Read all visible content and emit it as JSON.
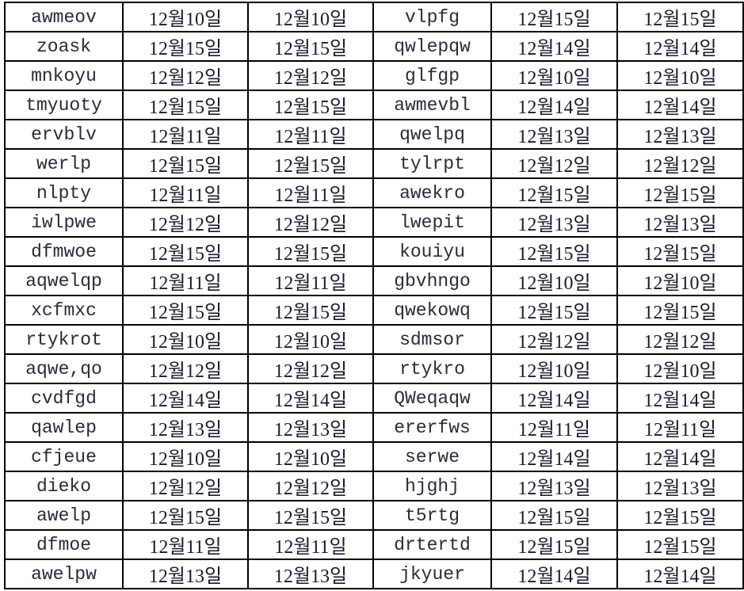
{
  "sheet": {
    "rows": [
      [
        "awmeov",
        "12월10일",
        "12월10일",
        "vlpfg",
        "12월15일",
        "12월15일"
      ],
      [
        "zoask",
        "12월15일",
        "12월15일",
        "qwlepqw",
        "12월14일",
        "12월14일"
      ],
      [
        "mnkoyu",
        "12월12일",
        "12월12일",
        "glfgp",
        "12월10일",
        "12월10일"
      ],
      [
        "tmyuoty",
        "12월15일",
        "12월15일",
        "awmevbl",
        "12월14일",
        "12월14일"
      ],
      [
        "ervblv",
        "12월11일",
        "12월11일",
        "qwelpq",
        "12월13일",
        "12월13일"
      ],
      [
        "werlp",
        "12월15일",
        "12월15일",
        "tylrpt",
        "12월12일",
        "12월12일"
      ],
      [
        "nlpty",
        "12월11일",
        "12월11일",
        "awekro",
        "12월15일",
        "12월15일"
      ],
      [
        "iwlpwe",
        "12월12일",
        "12월12일",
        "lwepit",
        "12월13일",
        "12월13일"
      ],
      [
        "dfmwoe",
        "12월15일",
        "12월15일",
        "kouiyu",
        "12월15일",
        "12월15일"
      ],
      [
        "aqwelqp",
        "12월11일",
        "12월11일",
        "gbvhngo",
        "12월10일",
        "12월10일"
      ],
      [
        "xcfmxc",
        "12월15일",
        "12월15일",
        "qwekowq",
        "12월15일",
        "12월15일"
      ],
      [
        "rtykrot",
        "12월10일",
        "12월10일",
        "sdmsor",
        "12월12일",
        "12월12일"
      ],
      [
        "aqwe,qo",
        "12월12일",
        "12월12일",
        "rtykro",
        "12월10일",
        "12월10일"
      ],
      [
        "cvdfgd",
        "12월14일",
        "12월14일",
        "QWeqaqw",
        "12월14일",
        "12월14일"
      ],
      [
        "qawlep",
        "12월13일",
        "12월13일",
        "ererfws",
        "12월11일",
        "12월11일"
      ],
      [
        "cfjeue",
        "12월10일",
        "12월10일",
        "serwe",
        "12월14일",
        "12월14일"
      ],
      [
        "dieko",
        "12월12일",
        "12월12일",
        "hjghj",
        "12월13일",
        "12월13일"
      ],
      [
        "awelp",
        "12월15일",
        "12월15일",
        "t5rtg",
        "12월15일",
        "12월15일"
      ],
      [
        "dfmoe",
        "12월11일",
        "12월11일",
        "drtertd",
        "12월15일",
        "12월15일"
      ],
      [
        "awelpw",
        "12월13일",
        "12월13일",
        "jkyuer",
        "12월14일",
        "12월14일"
      ]
    ]
  }
}
